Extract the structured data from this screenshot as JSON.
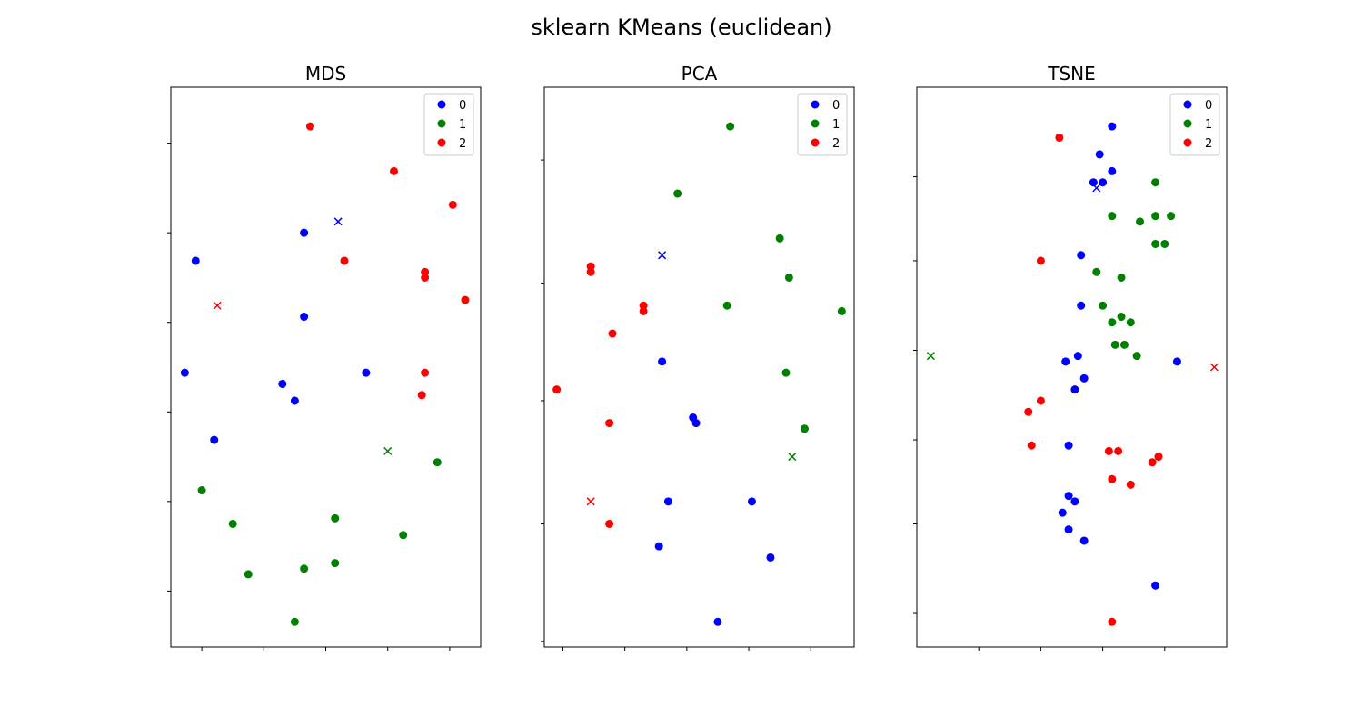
{
  "figure": {
    "title": "sklearn KMeans (euclidean)"
  },
  "colors": {
    "0": "#0000ff",
    "1": "#008000",
    "2": "#ff0000"
  },
  "chart_data": [
    {
      "type": "scatter",
      "title": "MDS",
      "xlim": [
        0,
        10
      ],
      "ylim": [
        0,
        10
      ],
      "legend": {
        "location": "top-right",
        "entries": [
          "0",
          "1",
          "2"
        ]
      },
      "tick_labels_visible": false,
      "grid": false,
      "series": [
        {
          "name": "0",
          "points": [
            [
              4.3,
              7.4
            ],
            [
              0.8,
              6.9
            ],
            [
              4.3,
              5.9
            ],
            [
              0.45,
              4.9
            ],
            [
              6.3,
              4.9
            ],
            [
              3.6,
              4.7
            ],
            [
              4.0,
              4.4
            ],
            [
              1.4,
              3.7
            ]
          ]
        },
        {
          "name": "1",
          "points": [
            [
              1.0,
              2.8
            ],
            [
              2.0,
              2.2
            ],
            [
              2.5,
              1.3
            ],
            [
              4.3,
              1.4
            ],
            [
              7.5,
              2.0
            ],
            [
              8.6,
              3.3
            ],
            [
              5.3,
              2.3
            ],
            [
              5.3,
              1.5
            ],
            [
              4.0,
              0.45
            ]
          ]
        },
        {
          "name": "2",
          "points": [
            [
              4.5,
              9.3
            ],
            [
              7.2,
              8.5
            ],
            [
              9.1,
              7.9
            ],
            [
              5.6,
              6.9
            ],
            [
              8.2,
              6.7
            ],
            [
              8.2,
              6.6
            ],
            [
              9.5,
              6.2
            ],
            [
              8.2,
              4.9
            ],
            [
              8.1,
              4.5
            ]
          ]
        }
      ],
      "centroids": [
        {
          "cluster": "0",
          "point": [
            5.4,
            7.6
          ]
        },
        {
          "cluster": "1",
          "point": [
            7.0,
            3.5
          ]
        },
        {
          "cluster": "2",
          "point": [
            1.5,
            6.1
          ]
        }
      ]
    },
    {
      "type": "scatter",
      "title": "PCA",
      "xlim": [
        0,
        10
      ],
      "ylim": [
        0,
        10
      ],
      "legend": {
        "location": "top-right",
        "entries": [
          "0",
          "1",
          "2"
        ]
      },
      "tick_labels_visible": false,
      "grid": false,
      "series": [
        {
          "name": "0",
          "points": [
            [
              3.8,
              5.1
            ],
            [
              4.8,
              4.1
            ],
            [
              4.9,
              4.0
            ],
            [
              4.0,
              2.6
            ],
            [
              6.7,
              2.6
            ],
            [
              3.7,
              1.8
            ],
            [
              7.3,
              1.6
            ],
            [
              5.6,
              0.45
            ]
          ]
        },
        {
          "name": "1",
          "points": [
            [
              6.0,
              9.3
            ],
            [
              4.3,
              8.1
            ],
            [
              7.6,
              7.3
            ],
            [
              7.9,
              6.6
            ],
            [
              5.9,
              6.1
            ],
            [
              9.6,
              6.0
            ],
            [
              7.8,
              4.9
            ],
            [
              8.4,
              3.9
            ]
          ]
        },
        {
          "name": "2",
          "points": [
            [
              1.5,
              6.8
            ],
            [
              1.5,
              6.7
            ],
            [
              3.2,
              6.1
            ],
            [
              3.2,
              6.0
            ],
            [
              2.2,
              5.6
            ],
            [
              0.4,
              4.6
            ],
            [
              2.1,
              4.0
            ],
            [
              2.1,
              2.2
            ]
          ]
        }
      ],
      "centroids": [
        {
          "cluster": "0",
          "point": [
            3.8,
            7.0
          ]
        },
        {
          "cluster": "1",
          "point": [
            8.0,
            3.4
          ]
        },
        {
          "cluster": "2",
          "point": [
            1.5,
            2.6
          ]
        }
      ]
    },
    {
      "type": "scatter",
      "title": "TSNE",
      "xlim": [
        0,
        10
      ],
      "ylim": [
        0,
        10
      ],
      "legend": {
        "location": "top-right",
        "entries": [
          "0",
          "1",
          "2"
        ]
      },
      "tick_labels_visible": false,
      "grid": false,
      "series": [
        {
          "name": "0",
          "points": [
            [
              6.3,
              9.3
            ],
            [
              5.9,
              8.8
            ],
            [
              6.3,
              8.5
            ],
            [
              5.7,
              8.3
            ],
            [
              6.0,
              8.3
            ],
            [
              5.3,
              7.0
            ],
            [
              5.3,
              6.1
            ],
            [
              4.8,
              5.1
            ],
            [
              5.2,
              5.2
            ],
            [
              5.4,
              4.8
            ],
            [
              5.1,
              4.6
            ],
            [
              8.4,
              5.1
            ],
            [
              4.9,
              3.6
            ],
            [
              4.9,
              2.7
            ],
            [
              5.1,
              2.6
            ],
            [
              4.7,
              2.4
            ],
            [
              4.9,
              2.1
            ],
            [
              5.4,
              1.9
            ],
            [
              7.7,
              1.1
            ]
          ]
        },
        {
          "name": "1",
          "points": [
            [
              7.7,
              8.3
            ],
            [
              6.3,
              7.7
            ],
            [
              7.2,
              7.6
            ],
            [
              7.7,
              7.7
            ],
            [
              8.2,
              7.7
            ],
            [
              7.7,
              7.2
            ],
            [
              8.0,
              7.2
            ],
            [
              5.8,
              6.7
            ],
            [
              6.6,
              6.6
            ],
            [
              6.0,
              6.1
            ],
            [
              6.3,
              5.8
            ],
            [
              6.6,
              5.9
            ],
            [
              6.9,
              5.8
            ],
            [
              6.4,
              5.4
            ],
            [
              6.7,
              5.4
            ],
            [
              7.1,
              5.2
            ]
          ]
        },
        {
          "name": "2",
          "points": [
            [
              4.6,
              9.1
            ],
            [
              4.0,
              6.9
            ],
            [
              3.6,
              4.2
            ],
            [
              4.0,
              4.4
            ],
            [
              3.7,
              3.6
            ],
            [
              6.2,
              3.5
            ],
            [
              6.5,
              3.5
            ],
            [
              7.6,
              3.3
            ],
            [
              7.8,
              3.4
            ],
            [
              6.3,
              3.0
            ],
            [
              6.9,
              2.9
            ],
            [
              6.3,
              0.45
            ]
          ]
        }
      ],
      "centroids": [
        {
          "cluster": "0",
          "point": [
            5.8,
            8.2
          ]
        },
        {
          "cluster": "1",
          "point": [
            0.45,
            5.2
          ]
        },
        {
          "cluster": "2",
          "point": [
            9.6,
            5.0
          ]
        }
      ]
    }
  ]
}
